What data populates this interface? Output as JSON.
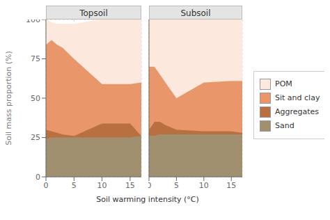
{
  "chart_data": [
    {
      "type": "area",
      "title": "Topsoil",
      "stacked": true,
      "grid": true,
      "y_label": "Soil mass proportion (%)",
      "x_label": "Soil warming intensity (°C)",
      "x": [
        0,
        1,
        2,
        3,
        5,
        10,
        15,
        17
      ],
      "series": [
        {
          "name": "Sand",
          "color": "#a09070",
          "values": [
            24,
            25,
            25,
            25,
            25,
            25,
            25,
            26
          ]
        },
        {
          "name": "Aggregates",
          "color": "#b87040",
          "values": [
            6,
            4,
            3,
            2,
            1,
            9,
            9,
            0
          ]
        },
        {
          "name": "Sit and clay",
          "color": "#e8966a",
          "values": [
            54,
            58,
            56,
            55,
            49,
            25,
            25,
            34
          ]
        },
        {
          "name": "POM",
          "color": "#fce8dd",
          "values": [
            16,
            11,
            13,
            15,
            22,
            41,
            41,
            40
          ]
        }
      ],
      "xlim": [
        0,
        17
      ],
      "xticks": [
        0,
        5,
        10,
        15
      ],
      "ylim": [
        0,
        100
      ],
      "yticks": [
        0,
        25,
        50,
        75,
        100
      ]
    },
    {
      "type": "area",
      "title": "Subsoil",
      "stacked": true,
      "grid": true,
      "tick_labels": "x",
      "legend": "right",
      "x": [
        0,
        1,
        2,
        3,
        5,
        10,
        15,
        17
      ],
      "series": [
        {
          "name": "Sand",
          "color": "#a09070",
          "values": [
            26,
            26,
            27,
            27,
            27,
            27,
            27,
            27
          ]
        },
        {
          "name": "Aggregates",
          "color": "#b87040",
          "values": [
            4,
            9,
            8,
            6,
            3,
            2,
            2,
            1
          ]
        },
        {
          "name": "Sit and clay",
          "color": "#e8966a",
          "values": [
            40,
            35,
            30,
            27,
            20,
            31,
            32,
            33
          ]
        },
        {
          "name": "POM",
          "color": "#fce8dd",
          "values": [
            30,
            30,
            35,
            40,
            50,
            40,
            39,
            39
          ]
        }
      ],
      "xlim": [
        0,
        17
      ],
      "xticks": [
        0,
        5,
        10,
        15
      ],
      "ylim": [
        0,
        100
      ],
      "yticks": [
        0,
        25,
        50,
        75,
        100
      ]
    }
  ]
}
